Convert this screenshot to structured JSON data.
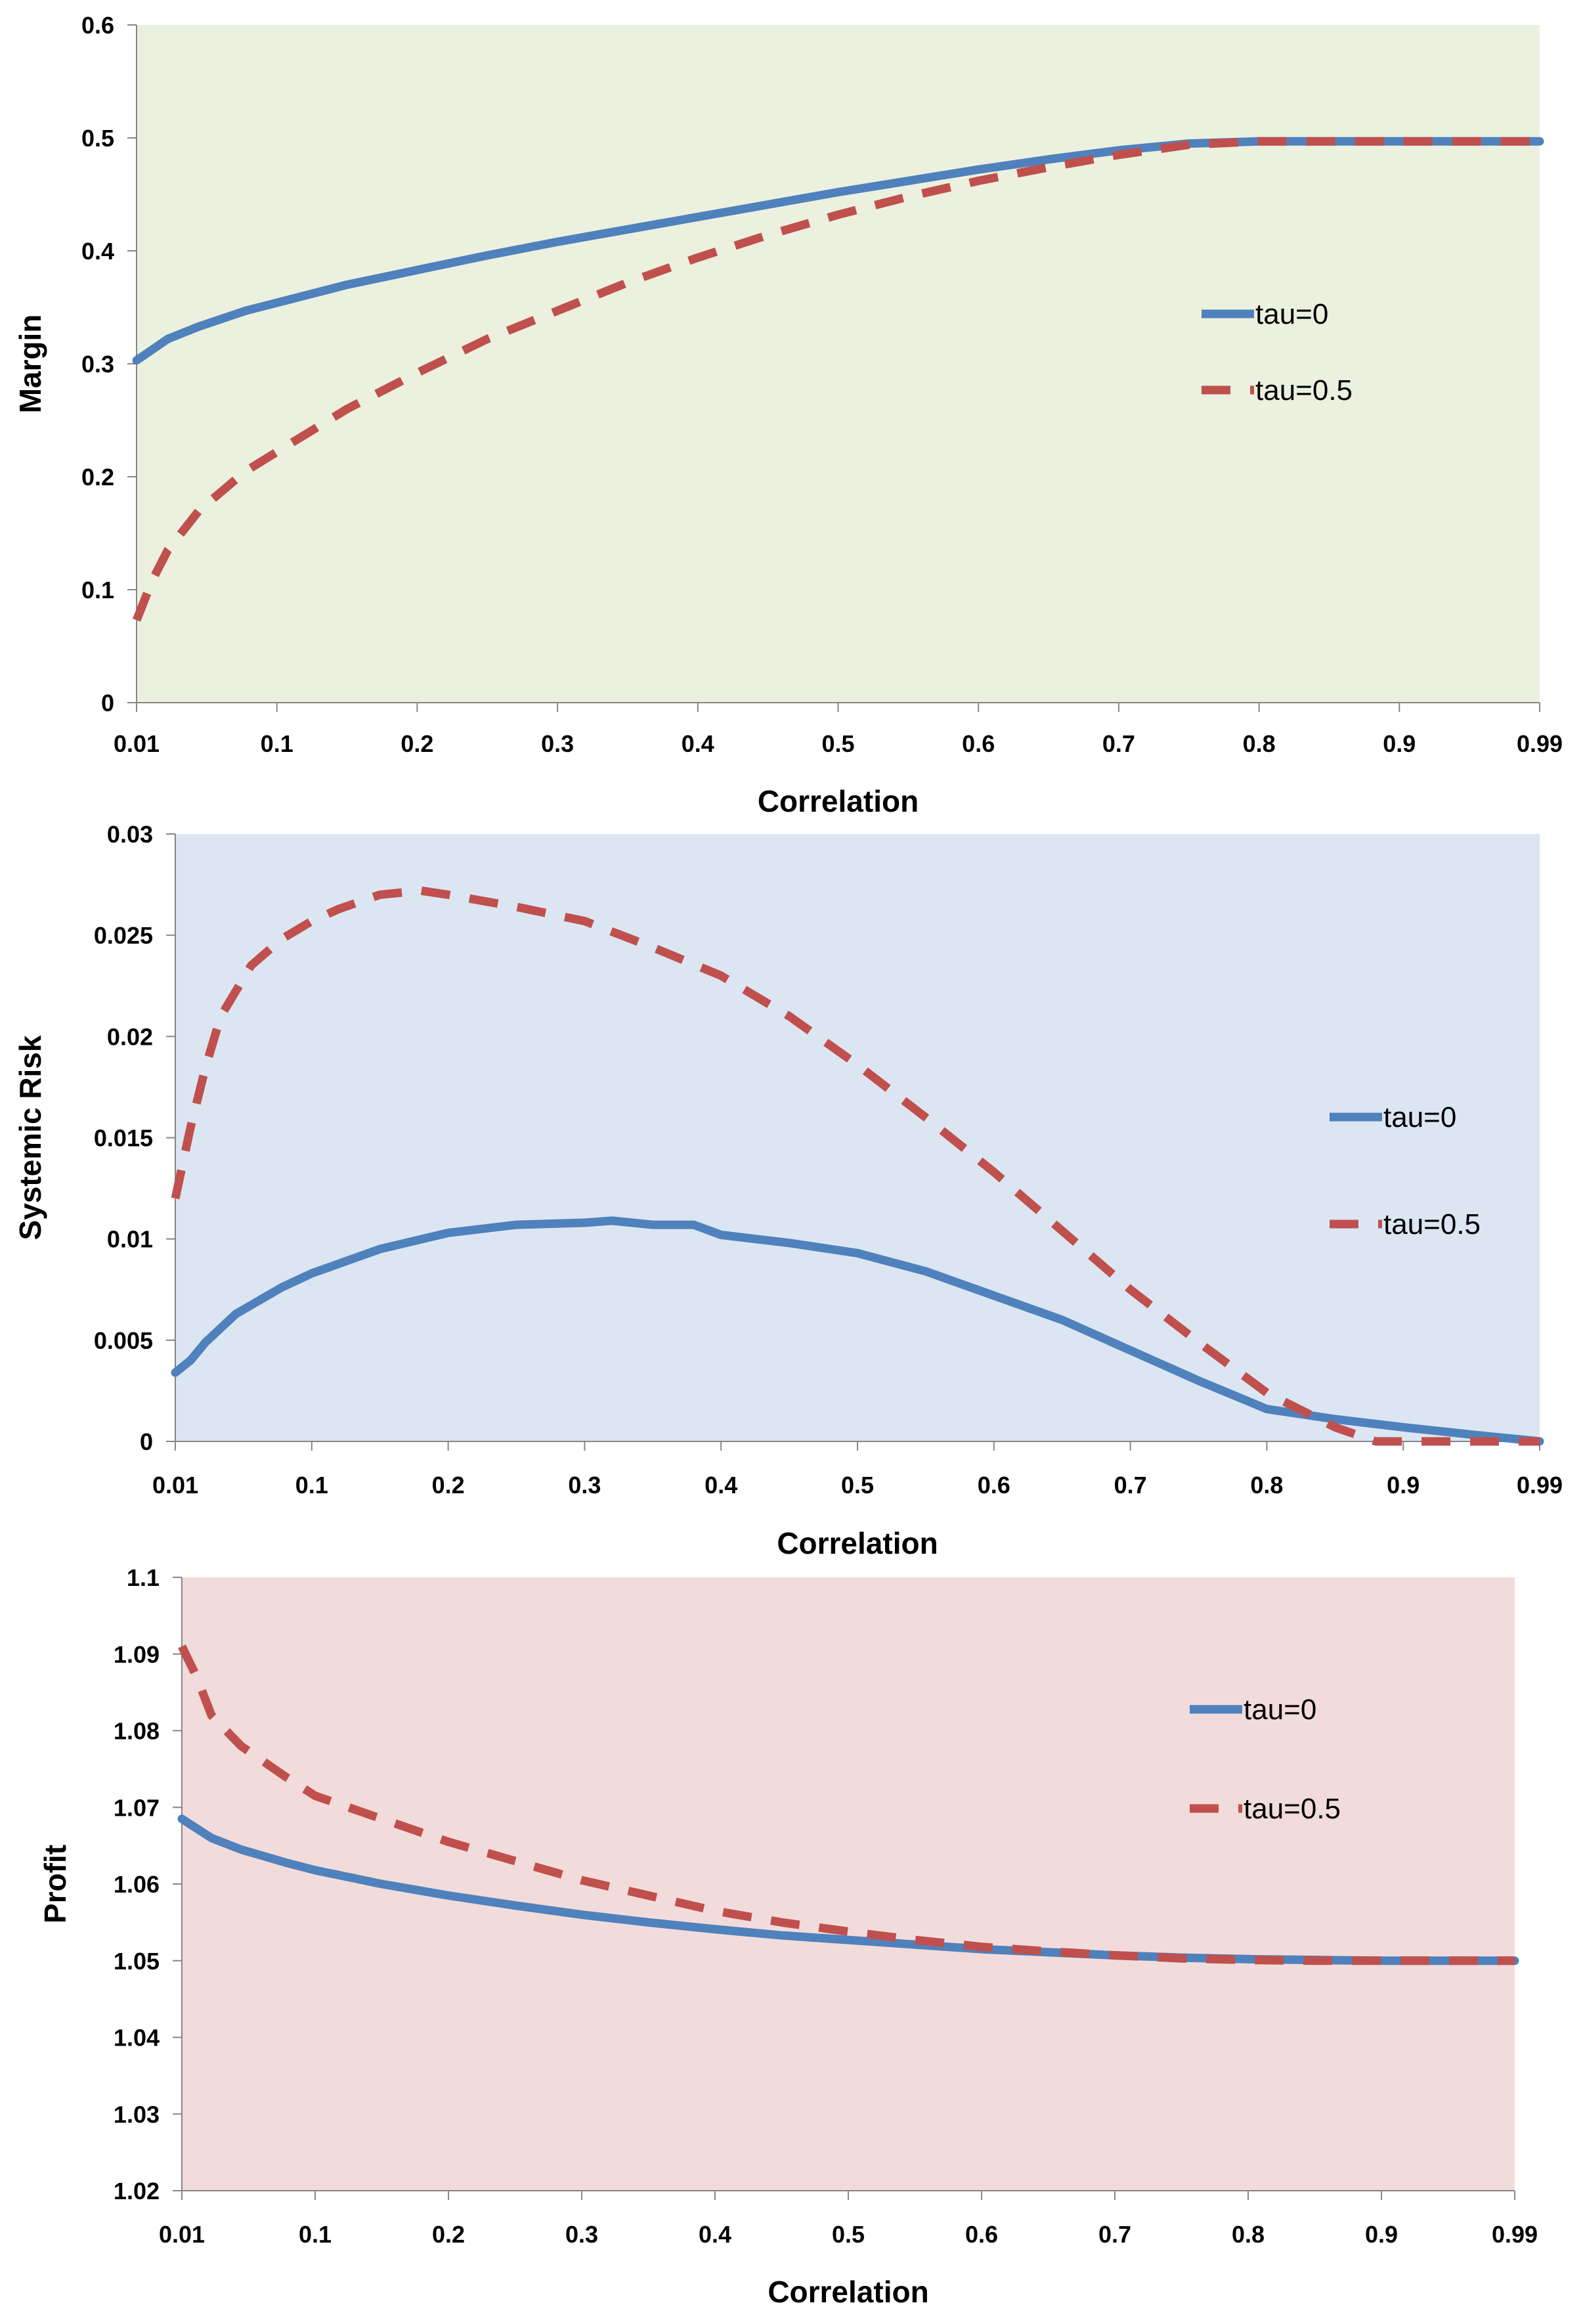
{
  "chart_data": [
    {
      "type": "line",
      "xlabel": "Correlation",
      "ylabel": "Margin",
      "x_tick_labels": [
        "0.01",
        "0.1",
        "0.2",
        "0.3",
        "0.4",
        "0.5",
        "0.6",
        "0.7",
        "0.8",
        "0.9",
        "0.99"
      ],
      "y_tick_labels": [
        "0",
        "0.1",
        "0.2",
        "0.3",
        "0.4",
        "0.5",
        "0.6"
      ],
      "xlim": [
        0.01,
        0.99
      ],
      "ylim": [
        0,
        0.6
      ],
      "grid": false,
      "legend_position": "right",
      "background_color": "#ebf1de",
      "series": [
        {
          "name": "tau=0",
          "color": "#4f81bd",
          "dash": "solid",
          "x": [
            0.01,
            0.03,
            0.05,
            0.08,
            0.1,
            0.15,
            0.2,
            0.25,
            0.3,
            0.35,
            0.4,
            0.45,
            0.5,
            0.55,
            0.6,
            0.65,
            0.7,
            0.75,
            0.8,
            0.85,
            0.9,
            0.95,
            0.99
          ],
          "values": [
            0.303,
            0.322,
            0.333,
            0.347,
            0.354,
            0.37,
            0.383,
            0.396,
            0.408,
            0.419,
            0.43,
            0.441,
            0.452,
            0.462,
            0.472,
            0.481,
            0.489,
            0.495,
            0.497,
            0.497,
            0.497,
            0.497,
            0.497
          ]
        },
        {
          "name": "tau=0.5",
          "color": "#c0504d",
          "dash": "dashed",
          "x": [
            0.01,
            0.02,
            0.03,
            0.05,
            0.08,
            0.1,
            0.15,
            0.2,
            0.25,
            0.3,
            0.35,
            0.4,
            0.45,
            0.5,
            0.55,
            0.6,
            0.65,
            0.7,
            0.75,
            0.8,
            0.85,
            0.9,
            0.95,
            0.99
          ],
          "values": [
            0.073,
            0.108,
            0.135,
            0.17,
            0.205,
            0.222,
            0.26,
            0.292,
            0.322,
            0.347,
            0.372,
            0.394,
            0.414,
            0.432,
            0.448,
            0.462,
            0.474,
            0.485,
            0.494,
            0.497,
            0.497,
            0.497,
            0.497,
            0.497
          ]
        }
      ]
    },
    {
      "type": "line",
      "xlabel": "Correlation",
      "ylabel": "Systemic Risk",
      "x_tick_labels": [
        "0.01",
        "0.1",
        "0.2",
        "0.3",
        "0.4",
        "0.5",
        "0.6",
        "0.7",
        "0.8",
        "0.9",
        "0.99"
      ],
      "y_tick_labels": [
        "0",
        "0.005",
        "0.01",
        "0.015",
        "0.02",
        "0.025",
        "0.03"
      ],
      "xlim": [
        0.01,
        0.99
      ],
      "ylim": [
        0,
        0.03
      ],
      "grid": false,
      "legend_position": "right",
      "background_color": "#dce6f2",
      "series": [
        {
          "name": "tau=0",
          "color": "#4f81bd",
          "dash": "solid",
          "x": [
            0.01,
            0.02,
            0.03,
            0.05,
            0.08,
            0.1,
            0.15,
            0.2,
            0.25,
            0.3,
            0.32,
            0.35,
            0.38,
            0.4,
            0.45,
            0.5,
            0.55,
            0.6,
            0.65,
            0.7,
            0.75,
            0.8,
            0.85,
            0.9,
            0.95,
            0.99
          ],
          "values": [
            0.0034,
            0.004,
            0.0049,
            0.0063,
            0.0076,
            0.0083,
            0.0095,
            0.0103,
            0.0107,
            0.0108,
            0.0109,
            0.0107,
            0.0107,
            0.0102,
            0.0098,
            0.0093,
            0.0084,
            0.0072,
            0.006,
            0.0045,
            0.003,
            0.0016,
            0.0011,
            0.0007,
            0.0003,
            0.0
          ]
        },
        {
          "name": "tau=0.5",
          "color": "#c0504d",
          "dash": "dashed",
          "x": [
            0.01,
            0.02,
            0.03,
            0.04,
            0.06,
            0.08,
            0.1,
            0.12,
            0.15,
            0.18,
            0.2,
            0.25,
            0.3,
            0.35,
            0.4,
            0.45,
            0.5,
            0.55,
            0.6,
            0.65,
            0.7,
            0.75,
            0.8,
            0.85,
            0.88,
            0.92,
            0.96,
            0.99
          ],
          "values": [
            0.012,
            0.0155,
            0.0185,
            0.021,
            0.0235,
            0.0248,
            0.0257,
            0.0263,
            0.027,
            0.0272,
            0.027,
            0.0264,
            0.0257,
            0.0244,
            0.023,
            0.021,
            0.0186,
            0.016,
            0.0133,
            0.0104,
            0.0075,
            0.0049,
            0.0024,
            0.0007,
            0.0,
            0.0,
            0.0,
            0.0
          ]
        }
      ]
    },
    {
      "type": "line",
      "xlabel": "Correlation",
      "ylabel": "Profit",
      "x_tick_labels": [
        "0.01",
        "0.1",
        "0.2",
        "0.3",
        "0.4",
        "0.5",
        "0.6",
        "0.7",
        "0.8",
        "0.9",
        "0.99"
      ],
      "y_tick_labels": [
        "1.02",
        "1.03",
        "1.04",
        "1.05",
        "1.06",
        "1.07",
        "1.08",
        "1.09",
        "1.1"
      ],
      "xlim": [
        0.01,
        0.99
      ],
      "ylim": [
        1.02,
        1.1
      ],
      "grid": false,
      "legend_position": "right",
      "background_color": "#f2dcdb",
      "series": [
        {
          "name": "tau=0",
          "color": "#4f81bd",
          "dash": "solid",
          "x": [
            0.01,
            0.03,
            0.05,
            0.08,
            0.1,
            0.15,
            0.2,
            0.25,
            0.3,
            0.35,
            0.4,
            0.45,
            0.5,
            0.55,
            0.6,
            0.65,
            0.7,
            0.75,
            0.8,
            0.85,
            0.9,
            0.95,
            0.99
          ],
          "values": [
            1.0685,
            1.066,
            1.0645,
            1.0628,
            1.0618,
            1.06,
            1.0585,
            1.0572,
            1.056,
            1.055,
            1.0541,
            1.0533,
            1.0527,
            1.0521,
            1.0515,
            1.0511,
            1.0507,
            1.0504,
            1.0502,
            1.0501,
            1.05,
            1.05,
            1.05
          ]
        },
        {
          "name": "tau=0.5",
          "color": "#c0504d",
          "dash": "dashed",
          "x": [
            0.01,
            0.02,
            0.03,
            0.05,
            0.08,
            0.1,
            0.15,
            0.2,
            0.25,
            0.3,
            0.35,
            0.4,
            0.45,
            0.5,
            0.55,
            0.6,
            0.65,
            0.7,
            0.75,
            0.8,
            0.85,
            0.9,
            0.95,
            0.99
          ],
          "values": [
            1.091,
            1.087,
            1.082,
            1.078,
            1.074,
            1.0715,
            1.0685,
            1.0655,
            1.063,
            1.0605,
            1.0585,
            1.0565,
            1.055,
            1.0538,
            1.0527,
            1.0518,
            1.0512,
            1.0507,
            1.0503,
            1.0501,
            1.05,
            1.05,
            1.05,
            1.05
          ]
        }
      ]
    }
  ]
}
